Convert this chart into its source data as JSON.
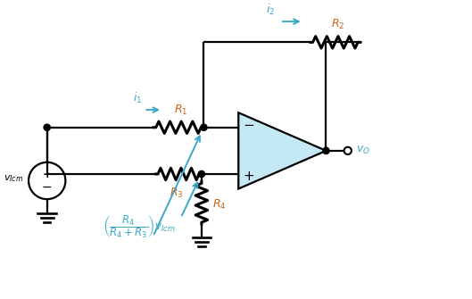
{
  "bg_color": "#ffffff",
  "line_color": "#000000",
  "blue_color": "#3ba8c8",
  "orange_color": "#c8641e",
  "opamp_fill": "#c5e8f5",
  "fig_width": 5.29,
  "fig_height": 3.35,
  "dpi": 100,
  "xlim": [
    0,
    10
  ],
  "ylim": [
    0,
    6.3
  ],
  "lw": 1.6,
  "res_lw": 2.2
}
